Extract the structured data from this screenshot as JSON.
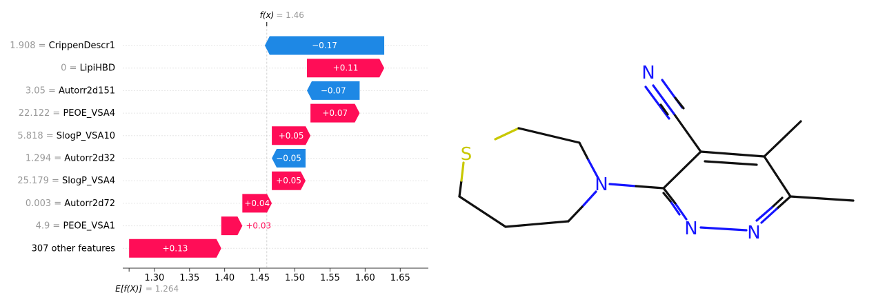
{
  "chart_data": {
    "type": "waterfall",
    "fx_label": "f(x)",
    "fx_value": "= 1.46",
    "fx": 1.46,
    "base_label": "E[f(X)]",
    "base_value_text": "= 1.264",
    "base_value": 1.264,
    "xlim": [
      1.255,
      1.69
    ],
    "xticks": [
      "1.30",
      "1.35",
      "1.40",
      "1.45",
      "1.50",
      "1.55",
      "1.60",
      "1.65"
    ],
    "xtick_values": [
      1.3,
      1.35,
      1.4,
      1.45,
      1.5,
      1.55,
      1.6,
      1.65
    ],
    "colors": {
      "positive": "#ff0d57",
      "negative": "#1e88e5",
      "value_text": "#999999"
    },
    "features": [
      {
        "value": "1.908 =",
        "name": "CrippenDescr1",
        "start": 1.6272,
        "end": 1.4572,
        "label": "−0.17"
      },
      {
        "value": "0 =",
        "name": "LipiHBD",
        "start": 1.5172,
        "end": 1.6272,
        "label": "+0.11"
      },
      {
        "value": "3.05 =",
        "name": "Autorr2d151",
        "start": 1.5922,
        "end": 1.5172,
        "label": "−0.07"
      },
      {
        "value": "22.122 =",
        "name": "PEOE_VSA4",
        "start": 1.5222,
        "end": 1.5922,
        "label": "+0.07"
      },
      {
        "value": "5.818 =",
        "name": "SlogP_VSA10",
        "start": 1.4672,
        "end": 1.5222,
        "label": "+0.05"
      },
      {
        "value": "1.294 =",
        "name": "Autorr2d32",
        "start": 1.5152,
        "end": 1.4672,
        "label": "−0.05"
      },
      {
        "value": "25.179 =",
        "name": "SlogP_VSA4",
        "start": 1.4672,
        "end": 1.5152,
        "label": "+0.05"
      },
      {
        "value": "0.003 =",
        "name": "Autorr2d72",
        "start": 1.4252,
        "end": 1.4672,
        "label": "+0.04"
      },
      {
        "value": "4.9 =",
        "name": "PEOE_VSA1",
        "start": 1.3952,
        "end": 1.4252,
        "label": "+0.03"
      },
      {
        "value": "",
        "name": "307 other features",
        "start": 1.264,
        "end": 1.3952,
        "label": "+0.13"
      }
    ]
  },
  "molecule": {
    "atoms": {
      "S": "S",
      "N_ring": "N",
      "N_nitrile": "N",
      "N_pyr1": "N",
      "N_pyr2": "N"
    }
  }
}
